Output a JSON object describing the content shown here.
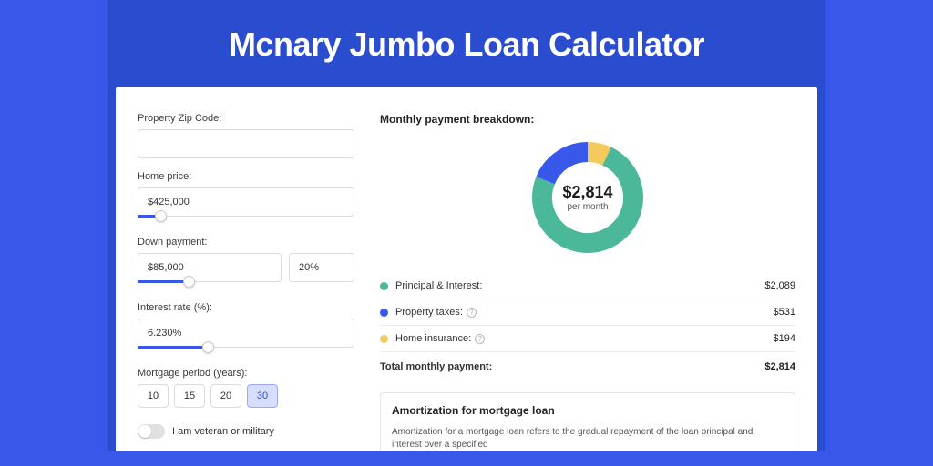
{
  "page": {
    "title": "Mcnary Jumbo Loan Calculator",
    "background_color": "#3858e9",
    "band_color": "#2a4dd0",
    "card_background": "#ffffff"
  },
  "form": {
    "zip": {
      "label": "Property Zip Code:",
      "value": ""
    },
    "home_price": {
      "label": "Home price:",
      "value": "$425,000",
      "slider_pct": 8
    },
    "down_payment": {
      "label": "Down payment:",
      "amount": "$85,000",
      "percent": "20%",
      "slider_pct": 21
    },
    "interest_rate": {
      "label": "Interest rate (%):",
      "value": "6.230%",
      "slider_pct": 30
    },
    "mortgage_period": {
      "label": "Mortgage period (years):",
      "options": [
        "10",
        "15",
        "20",
        "30"
      ],
      "selected": "30"
    },
    "veteran": {
      "label": "I am veteran or military",
      "checked": false
    }
  },
  "breakdown": {
    "heading": "Monthly payment breakdown:",
    "center_amount": "$2,814",
    "center_sub": "per month",
    "items": [
      {
        "key": "principal",
        "label": "Principal & Interest:",
        "value": "$2,089",
        "color": "#4bb89a",
        "info": false,
        "numeric": 2089
      },
      {
        "key": "taxes",
        "label": "Property taxes:",
        "value": "$531",
        "color": "#3858e9",
        "info": true,
        "numeric": 531
      },
      {
        "key": "insurance",
        "label": "Home insurance:",
        "value": "$194",
        "color": "#f4c95d",
        "info": true,
        "numeric": 194
      }
    ],
    "total": {
      "label": "Total monthly payment:",
      "value": "$2,814",
      "numeric": 2814
    },
    "donut": {
      "radius": 50,
      "stroke_width": 22,
      "background": "#ffffff"
    }
  },
  "amortization": {
    "title": "Amortization for mortgage loan",
    "text": "Amortization for a mortgage loan refers to the gradual repayment of the loan principal and interest over a specified"
  }
}
